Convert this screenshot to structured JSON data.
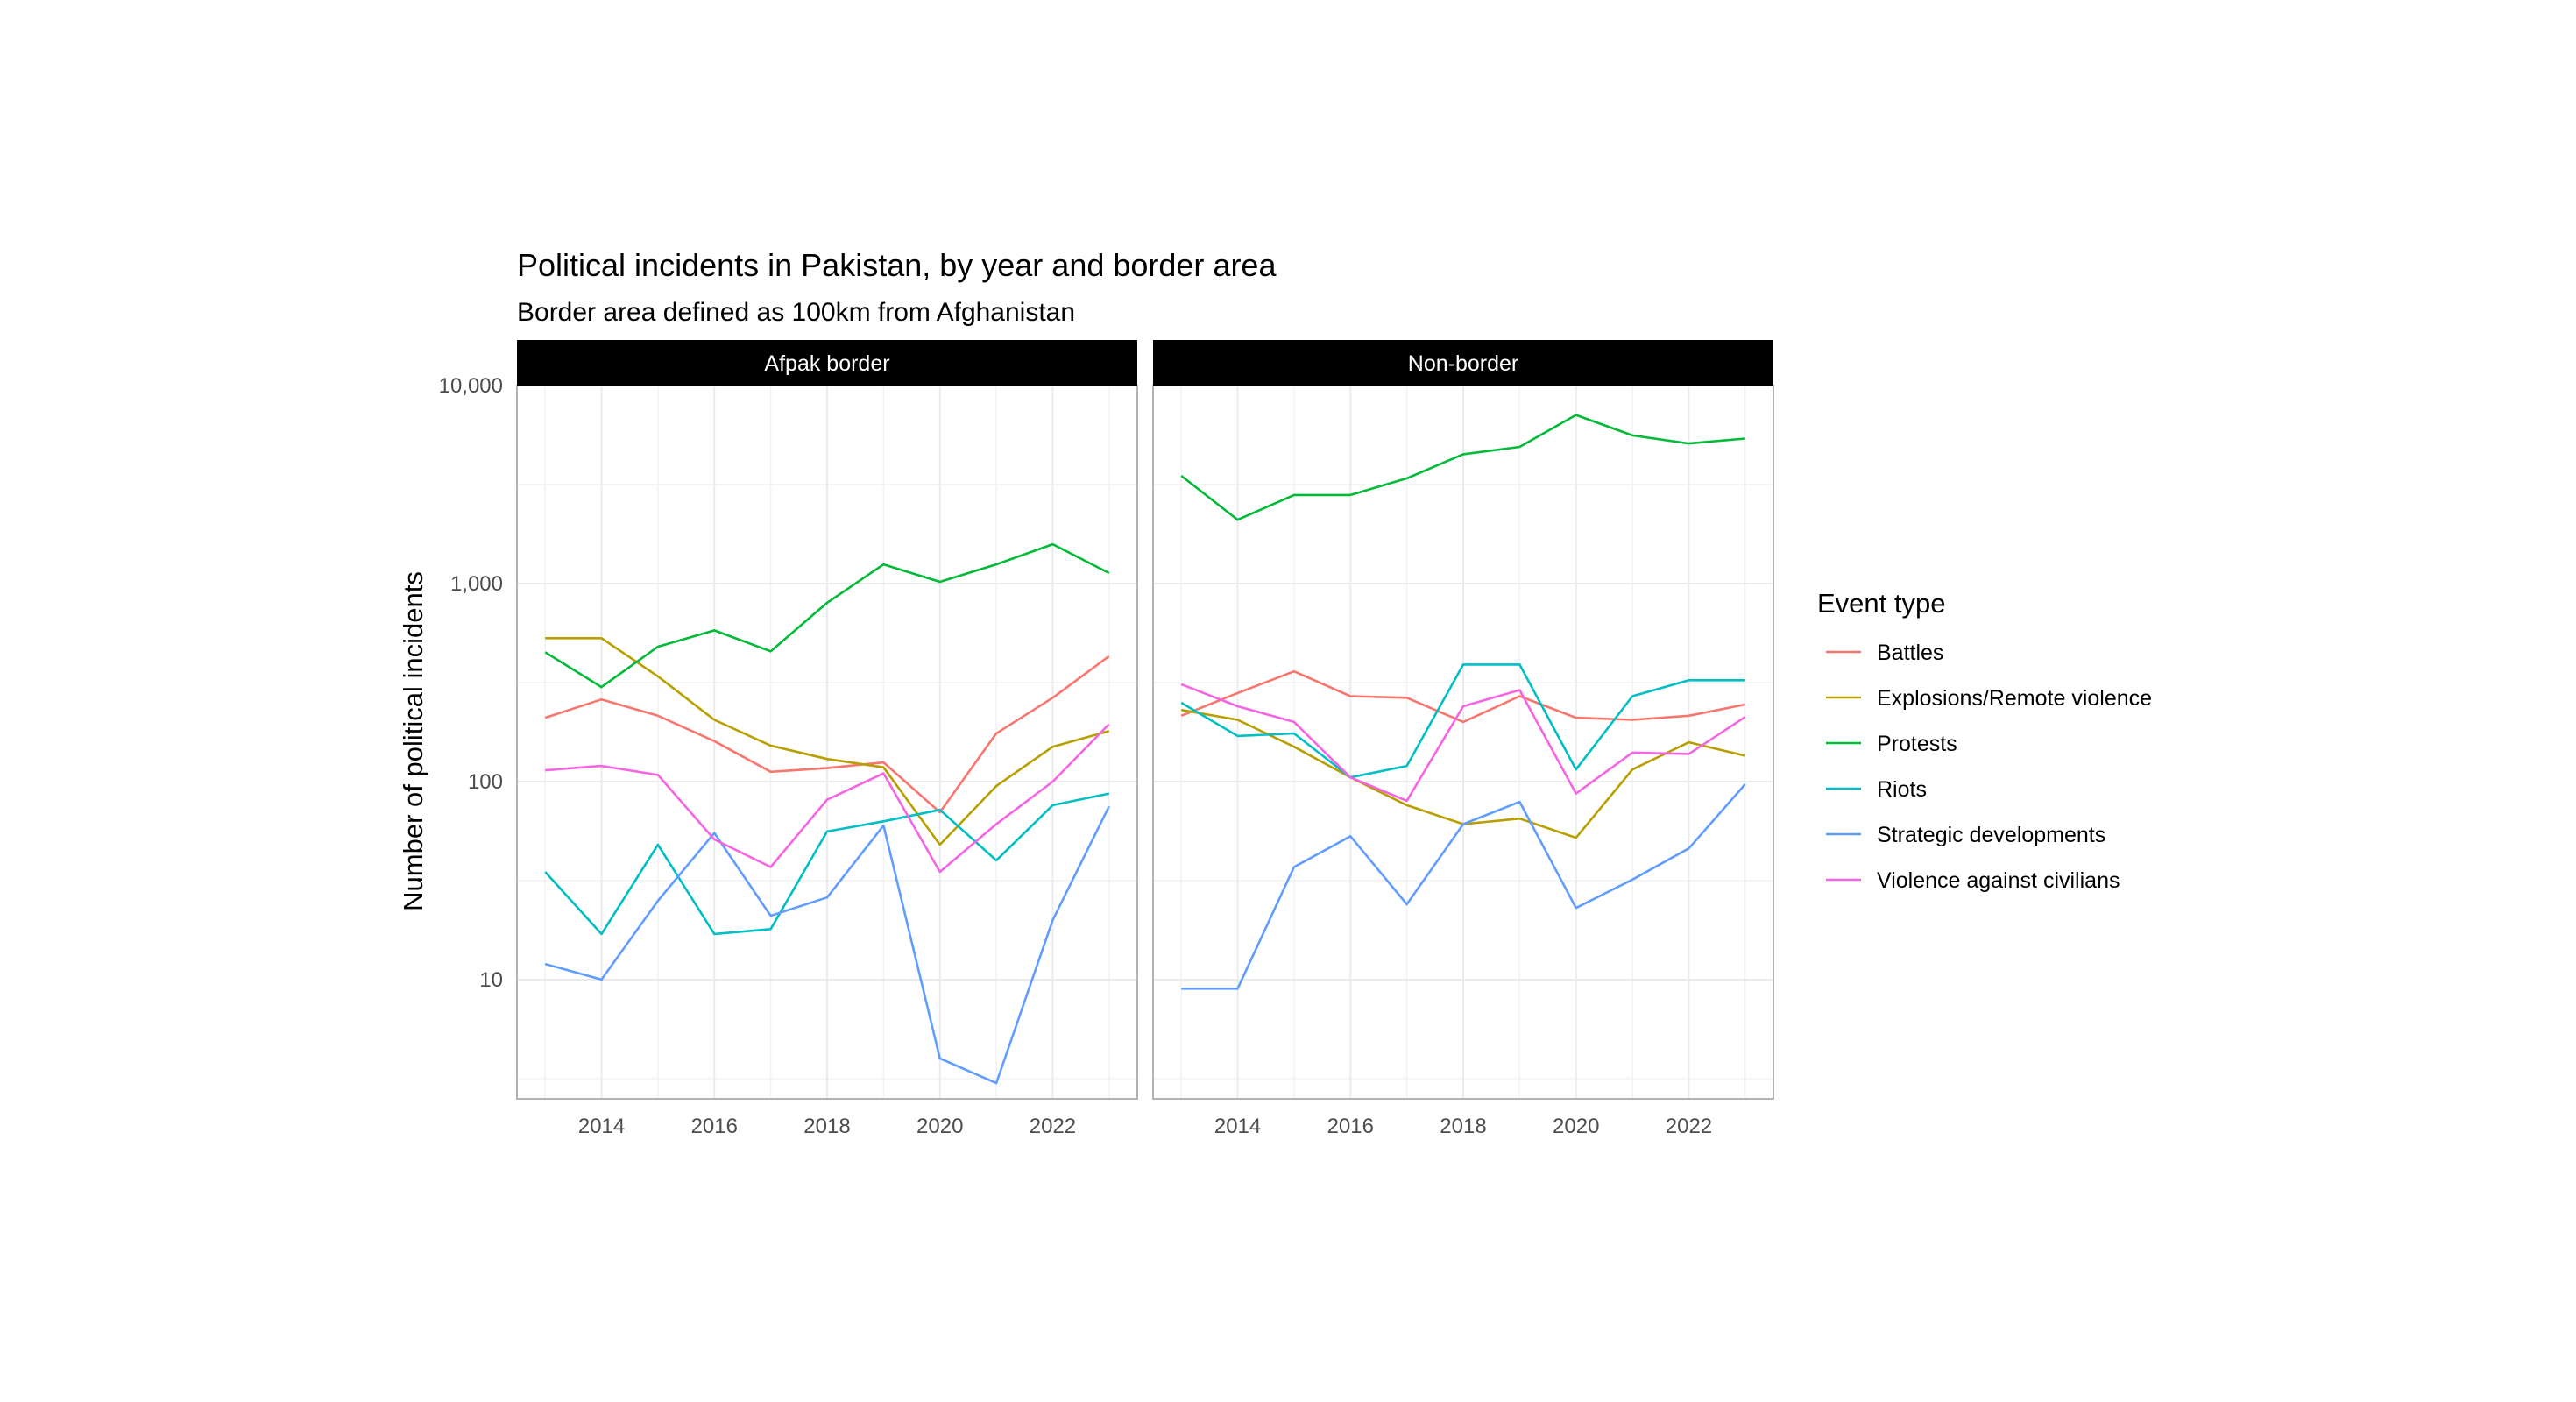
{
  "chart_data": {
    "type": "line",
    "title": "Political incidents in Pakistan, by year and border area",
    "subtitle": "Border area defined as 100km from Afghanistan",
    "ylabel": "Number of political incidents",
    "xlabel": "",
    "y_scale": "log10",
    "ylim": [
      2.5,
      10000
    ],
    "xlim": [
      2012.5,
      2023.5
    ],
    "x_ticks": [
      2014,
      2016,
      2018,
      2020,
      2022
    ],
    "x_tick_labels": [
      "2014",
      "2016",
      "2018",
      "2020",
      "2022"
    ],
    "y_ticks": [
      10,
      100,
      1000,
      10000
    ],
    "y_tick_labels": [
      "10",
      "100",
      "1,000",
      "10,000"
    ],
    "grid": true,
    "legend": {
      "title": "Event type",
      "position": "right"
    },
    "x": [
      2013,
      2014,
      2015,
      2016,
      2017,
      2018,
      2019,
      2020,
      2021,
      2022,
      2023
    ],
    "series_colors": {
      "Battles": "#F8766D",
      "Explosions/Remote violence": "#B79F00",
      "Protests": "#00BA38",
      "Riots": "#00BFC4",
      "Strategic developments": "#619CFF",
      "Violence against civilians": "#F564E3"
    },
    "series_order": [
      "Battles",
      "Explosions/Remote violence",
      "Protests",
      "Riots",
      "Strategic developments",
      "Violence against civilians"
    ],
    "panels": [
      {
        "name": "Afpak border",
        "series": [
          {
            "name": "Battles",
            "values": [
              210,
              260,
              215,
              160,
              112,
              117,
              125,
              70,
              175,
              265,
              430
            ]
          },
          {
            "name": "Explosions/Remote violence",
            "values": [
              530,
              530,
              340,
              205,
              152,
              130,
              118,
              48,
              95,
              150,
              180
            ]
          },
          {
            "name": "Protests",
            "values": [
              450,
              300,
              480,
              580,
              455,
              800,
              1250,
              1020,
              1250,
              1580,
              1130
            ]
          },
          {
            "name": "Riots",
            "values": [
              35,
              17,
              48,
              17,
              18,
              56,
              63,
              72,
              40,
              76,
              87
            ]
          },
          {
            "name": "Strategic developments",
            "values": [
              12,
              10,
              25,
              55,
              21,
              26,
              60,
              4,
              3,
              20,
              75
            ]
          },
          {
            "name": "Violence against civilians",
            "values": [
              114,
              120,
              108,
              51,
              37,
              81,
              110,
              35,
              61,
              100,
              195
            ]
          }
        ]
      },
      {
        "name": "Non-border",
        "series": [
          {
            "name": "Battles",
            "values": [
              215,
              280,
              360,
              270,
              265,
              200,
              270,
              210,
              205,
              215,
              245
            ]
          },
          {
            "name": "Explosions/Remote violence",
            "values": [
              230,
              205,
              150,
              105,
              76,
              61,
              65,
              52,
              115,
              158,
              135
            ]
          },
          {
            "name": "Protests",
            "values": [
              3500,
              2100,
              2800,
              2800,
              3400,
              4500,
              4900,
              7100,
              5600,
              5100,
              5400
            ]
          },
          {
            "name": "Riots",
            "values": [
              250,
              170,
              175,
              105,
              120,
              390,
              390,
              115,
              270,
              325,
              325
            ]
          },
          {
            "name": "Strategic developments",
            "values": [
              9,
              9,
              37,
              53,
              24,
              61,
              79,
              23,
              32,
              46,
              97
            ]
          },
          {
            "name": "Violence against civilians",
            "values": [
              310,
              240,
              200,
              105,
              80,
              240,
              290,
              87,
              140,
              138,
              212
            ]
          }
        ]
      }
    ]
  }
}
